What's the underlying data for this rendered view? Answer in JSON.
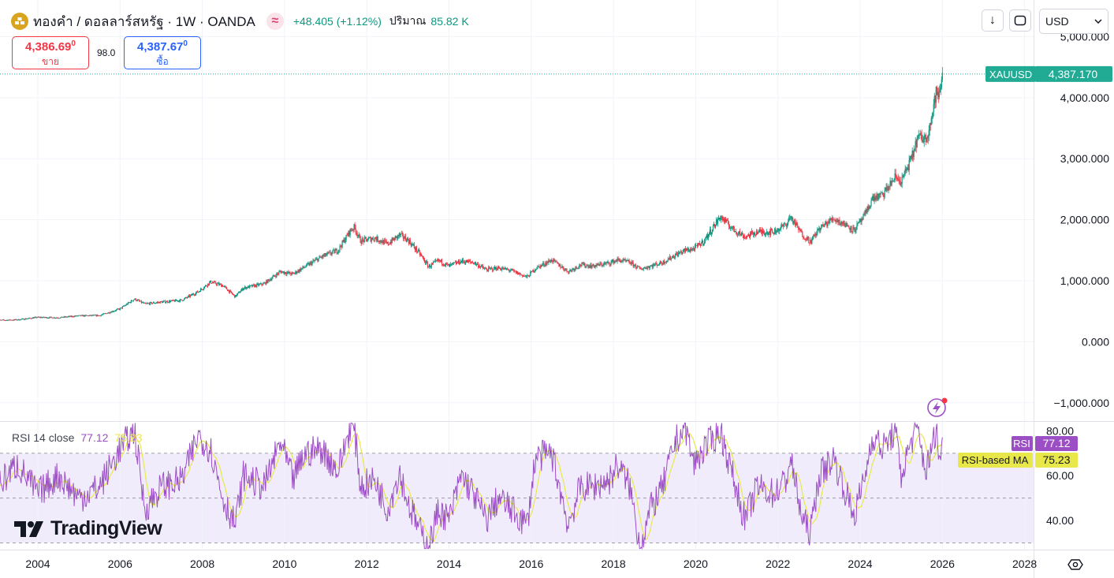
{
  "header": {
    "symbol_title": "ทองคำ / ดอลลาร์สหรัฐ · 1W · OANDA",
    "status_icon": "≈",
    "change": "+48.405 (+1.12%)",
    "volume_label": "ปริมาณ",
    "volume_value": "85.82 K"
  },
  "quotes": {
    "sell_price": "4,386.69",
    "sell_sup": "0",
    "sell_label": "ขาย",
    "spread": "98.0",
    "buy_price": "4,387.67",
    "buy_sup": "0",
    "buy_label": "ซื้อ"
  },
  "toolbar": {
    "download_icon": "↓",
    "fullscreen_icon": "⛶",
    "currency": "USD",
    "currency_chevron": "⌄"
  },
  "rsi_legend": {
    "name": "RSI 14 close",
    "rsi_value": "77.12",
    "ma_value": "75.23"
  },
  "branding": {
    "name": "TradingView"
  },
  "colors": {
    "up": "#089981",
    "down": "#f23645",
    "rsi_line": "#9c4fc4",
    "rsi_ma": "#e8e84a",
    "rsi_band": "#f1ecfb",
    "price_tag": "#22ab94"
  },
  "chart_data": [
    {
      "type": "candlestick",
      "symbol": "XAUUSD",
      "interval": "1W",
      "last_price": 4387.17,
      "last_price_label": "4,387.170",
      "price_tag_label": "XAUUSD",
      "ylim": [
        -1300,
        5600
      ],
      "y_ticks": [
        5000,
        4000,
        3000,
        2000,
        1000,
        0,
        -1000
      ],
      "y_tick_labels": [
        "5,000.000",
        "4,000.000",
        "3,000.000",
        "2,000.000",
        "1,000.000",
        "0.000",
        "−1,000.000"
      ],
      "x_ticks": [
        2004,
        2006,
        2008,
        2010,
        2012,
        2014,
        2016,
        2018,
        2020,
        2022,
        2024,
        2026,
        2028
      ],
      "x_tick_labels": [
        "2004",
        "2006",
        "2008",
        "2010",
        "2012",
        "2014",
        "2016",
        "2018",
        "2020",
        "2022",
        "2024",
        "2026",
        "2028"
      ],
      "grid": true,
      "series_points": [
        [
          2003.0,
          350
        ],
        [
          2003.5,
          360
        ],
        [
          2004.0,
          400
        ],
        [
          2004.5,
          395
        ],
        [
          2005.0,
          425
        ],
        [
          2005.5,
          430
        ],
        [
          2006.0,
          540
        ],
        [
          2006.35,
          700
        ],
        [
          2006.6,
          620
        ],
        [
          2007.0,
          650
        ],
        [
          2007.5,
          680
        ],
        [
          2007.9,
          820
        ],
        [
          2008.2,
          980
        ],
        [
          2008.5,
          920
        ],
        [
          2008.8,
          740
        ],
        [
          2009.0,
          880
        ],
        [
          2009.5,
          950
        ],
        [
          2009.9,
          1150
        ],
        [
          2010.2,
          1110
        ],
        [
          2010.5,
          1230
        ],
        [
          2010.9,
          1390
        ],
        [
          2011.3,
          1500
        ],
        [
          2011.6,
          1820
        ],
        [
          2011.7,
          1880
        ],
        [
          2011.85,
          1650
        ],
        [
          2012.2,
          1700
        ],
        [
          2012.5,
          1600
        ],
        [
          2012.8,
          1750
        ],
        [
          2013.0,
          1670
        ],
        [
          2013.3,
          1430
        ],
        [
          2013.5,
          1230
        ],
        [
          2013.75,
          1330
        ],
        [
          2014.0,
          1240
        ],
        [
          2014.3,
          1320
        ],
        [
          2014.6,
          1300
        ],
        [
          2014.9,
          1180
        ],
        [
          2015.2,
          1210
        ],
        [
          2015.5,
          1170
        ],
        [
          2015.9,
          1060
        ],
        [
          2016.1,
          1200
        ],
        [
          2016.5,
          1340
        ],
        [
          2016.9,
          1150
        ],
        [
          2017.2,
          1260
        ],
        [
          2017.5,
          1240
        ],
        [
          2017.9,
          1290
        ],
        [
          2018.1,
          1340
        ],
        [
          2018.4,
          1300
        ],
        [
          2018.65,
          1190
        ],
        [
          2018.9,
          1240
        ],
        [
          2019.2,
          1300
        ],
        [
          2019.5,
          1420
        ],
        [
          2019.75,
          1500
        ],
        [
          2019.95,
          1520
        ],
        [
          2020.2,
          1650
        ],
        [
          2020.6,
          2050
        ],
        [
          2020.9,
          1850
        ],
        [
          2021.2,
          1720
        ],
        [
          2021.5,
          1800
        ],
        [
          2021.9,
          1800
        ],
        [
          2022.2,
          1920
        ],
        [
          2022.3,
          2050
        ],
        [
          2022.6,
          1750
        ],
        [
          2022.8,
          1640
        ],
        [
          2023.0,
          1850
        ],
        [
          2023.35,
          2020
        ],
        [
          2023.7,
          1900
        ],
        [
          2023.85,
          1830
        ],
        [
          2024.1,
          2050
        ],
        [
          2024.3,
          2350
        ],
        [
          2024.55,
          2400
        ],
        [
          2024.85,
          2700
        ],
        [
          2025.0,
          2630
        ],
        [
          2025.25,
          3000
        ],
        [
          2025.4,
          3350
        ],
        [
          2025.6,
          3330
        ],
        [
          2025.75,
          3700
        ],
        [
          2025.85,
          4100
        ],
        [
          2025.92,
          4000
        ],
        [
          2026.0,
          4387
        ]
      ]
    },
    {
      "type": "line",
      "indicator": "RSI 14 close",
      "series": [
        {
          "name": "RSI",
          "label": "RSI",
          "last_value": 77.12
        },
        {
          "name": "RSI-based MA",
          "label": "RSI-based MA",
          "last_value": 75.23
        }
      ],
      "ylim": [
        27,
        84
      ],
      "y_ticks": [
        80,
        60,
        40
      ],
      "y_tick_labels": [
        "80.00",
        "60.00",
        "40.00"
      ],
      "bands": {
        "upper": 70,
        "middle": 50,
        "lower": 30
      },
      "rsi_points": [
        [
          2003.0,
          55
        ],
        [
          2003.5,
          65
        ],
        [
          2004.0,
          52
        ],
        [
          2004.5,
          60
        ],
        [
          2005.0,
          50
        ],
        [
          2005.5,
          55
        ],
        [
          2006.0,
          72
        ],
        [
          2006.35,
          80
        ],
        [
          2006.6,
          45
        ],
        [
          2007.0,
          55
        ],
        [
          2007.5,
          58
        ],
        [
          2007.9,
          78
        ],
        [
          2008.2,
          72
        ],
        [
          2008.5,
          50
        ],
        [
          2008.8,
          38
        ],
        [
          2009.0,
          60
        ],
        [
          2009.5,
          55
        ],
        [
          2009.9,
          75
        ],
        [
          2010.2,
          58
        ],
        [
          2010.5,
          70
        ],
        [
          2010.9,
          72
        ],
        [
          2011.3,
          62
        ],
        [
          2011.6,
          82
        ],
        [
          2011.7,
          80
        ],
        [
          2011.85,
          55
        ],
        [
          2012.2,
          58
        ],
        [
          2012.5,
          45
        ],
        [
          2012.8,
          62
        ],
        [
          2013.0,
          48
        ],
        [
          2013.3,
          35
        ],
        [
          2013.5,
          28
        ],
        [
          2013.75,
          45
        ],
        [
          2014.0,
          40
        ],
        [
          2014.3,
          60
        ],
        [
          2014.6,
          52
        ],
        [
          2014.9,
          40
        ],
        [
          2015.2,
          50
        ],
        [
          2015.5,
          45
        ],
        [
          2015.9,
          38
        ],
        [
          2016.1,
          68
        ],
        [
          2016.5,
          70
        ],
        [
          2016.9,
          38
        ],
        [
          2017.2,
          55
        ],
        [
          2017.5,
          55
        ],
        [
          2017.9,
          58
        ],
        [
          2018.1,
          65
        ],
        [
          2018.4,
          55
        ],
        [
          2018.65,
          28
        ],
        [
          2018.9,
          45
        ],
        [
          2019.2,
          55
        ],
        [
          2019.5,
          75
        ],
        [
          2019.75,
          82
        ],
        [
          2019.95,
          65
        ],
        [
          2020.2,
          72
        ],
        [
          2020.6,
          80
        ],
        [
          2020.9,
          60
        ],
        [
          2021.2,
          40
        ],
        [
          2021.5,
          55
        ],
        [
          2021.9,
          52
        ],
        [
          2022.2,
          58
        ],
        [
          2022.3,
          68
        ],
        [
          2022.6,
          40
        ],
        [
          2022.8,
          35
        ],
        [
          2023.0,
          60
        ],
        [
          2023.35,
          68
        ],
        [
          2023.7,
          50
        ],
        [
          2023.85,
          42
        ],
        [
          2024.1,
          58
        ],
        [
          2024.3,
          78
        ],
        [
          2024.55,
          72
        ],
        [
          2024.85,
          80
        ],
        [
          2025.0,
          60
        ],
        [
          2025.25,
          76
        ],
        [
          2025.4,
          80
        ],
        [
          2025.6,
          62
        ],
        [
          2025.75,
          72
        ],
        [
          2025.85,
          82
        ],
        [
          2025.92,
          66
        ],
        [
          2026.0,
          77.12
        ]
      ]
    }
  ]
}
